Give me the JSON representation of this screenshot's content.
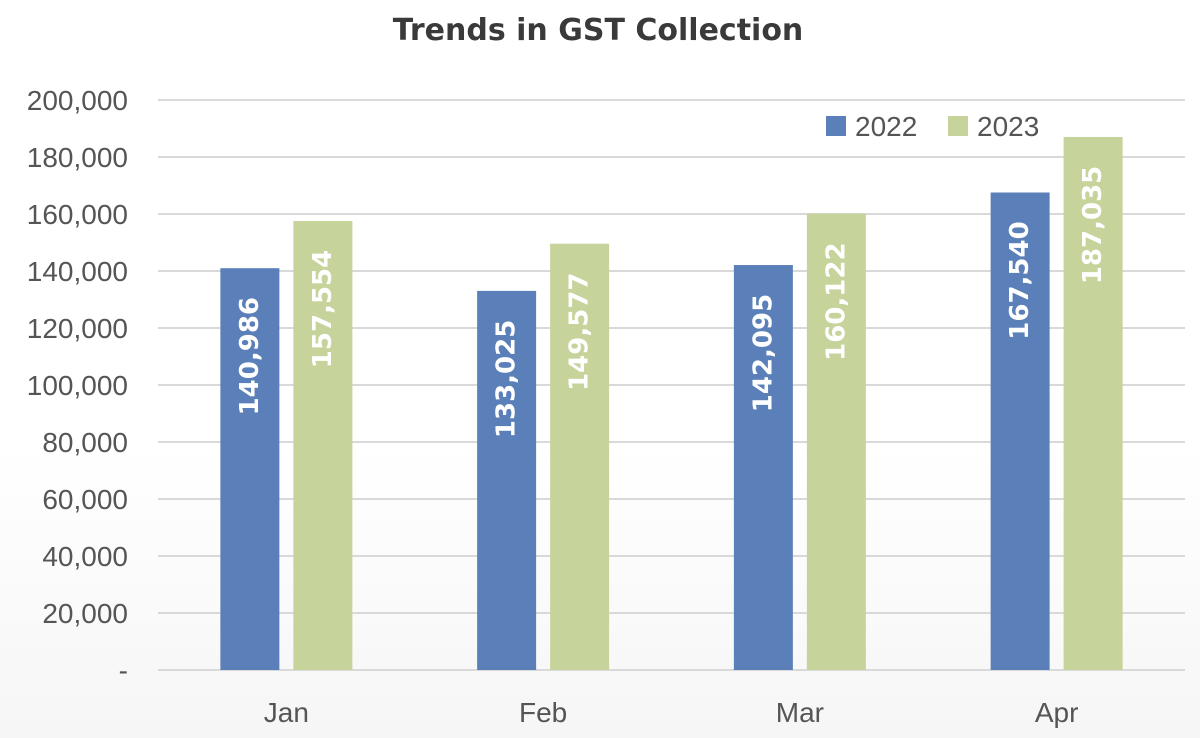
{
  "chart_data": {
    "type": "bar",
    "title": "Trends in GST Collection",
    "xlabel": "",
    "ylabel": "",
    "categories": [
      "Jan",
      "Feb",
      "Mar",
      "Apr"
    ],
    "series": [
      {
        "name": "2022",
        "color": "#5b80b9",
        "values": [
          140986,
          133025,
          142095,
          167540
        ],
        "labels": [
          "140,986",
          "133,025",
          "142,095",
          "167,540"
        ]
      },
      {
        "name": "2023",
        "color": "#c6d39b",
        "values": [
          157554,
          149577,
          160122,
          187035
        ],
        "labels": [
          "157,554",
          "149,577",
          "160,122",
          "187,035"
        ]
      }
    ],
    "ylim": [
      0,
      200000
    ],
    "yticks": [
      {
        "value": 0,
        "label": "-"
      },
      {
        "value": 20000,
        "label": "20,000"
      },
      {
        "value": 40000,
        "label": "40,000"
      },
      {
        "value": 60000,
        "label": "60,000"
      },
      {
        "value": 80000,
        "label": "80,000"
      },
      {
        "value": 100000,
        "label": "100,000"
      },
      {
        "value": 120000,
        "label": "120,000"
      },
      {
        "value": 140000,
        "label": "140,000"
      },
      {
        "value": 160000,
        "label": "160,000"
      },
      {
        "value": 180000,
        "label": "180,000"
      },
      {
        "value": 200000,
        "label": "200,000"
      }
    ],
    "grid": true,
    "legend": "top-right"
  }
}
